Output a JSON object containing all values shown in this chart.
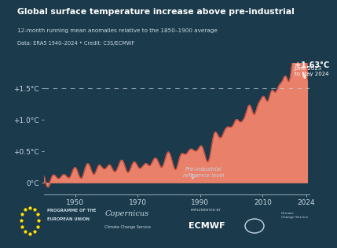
{
  "title": "Global surface temperature increase above pre-industrial",
  "subtitle": "12-month running mean anomalies relative to the 1850–1900 average",
  "data_credit": "Data: ERA5 1940–2024 • Credit: C3S/ECMWF",
  "annotation_peak": "+1.63°C\nJune 2023\nto May 2024",
  "annotation_label_line1": "Pre-industrial",
  "annotation_label_line2": "reference level",
  "ytick_labels": [
    "0°C",
    "+0.5°C",
    "+1.0°C",
    "+1.5°C"
  ],
  "ytick_values": [
    0,
    0.5,
    1.0,
    1.5
  ],
  "xtick_labels": [
    "1950",
    "1970",
    "1990",
    "2010",
    "2024"
  ],
  "xtick_values": [
    1950,
    1970,
    1990,
    2010,
    2024
  ],
  "xmin": 1940,
  "xmax": 2025,
  "ymin": -0.18,
  "ymax": 1.9,
  "dashed_line_y": 1.5,
  "fill_color": "#E8806A",
  "line_color": "#C04030",
  "fill_alpha": 1.0,
  "bg_color": "#1b3a4b",
  "text_color": "#c8d8e4",
  "title_color": "#ffffff",
  "dashed_color": "#c8d8e4",
  "annotation_color": "#ffffff",
  "logo_bar_color": "#162e3c"
}
